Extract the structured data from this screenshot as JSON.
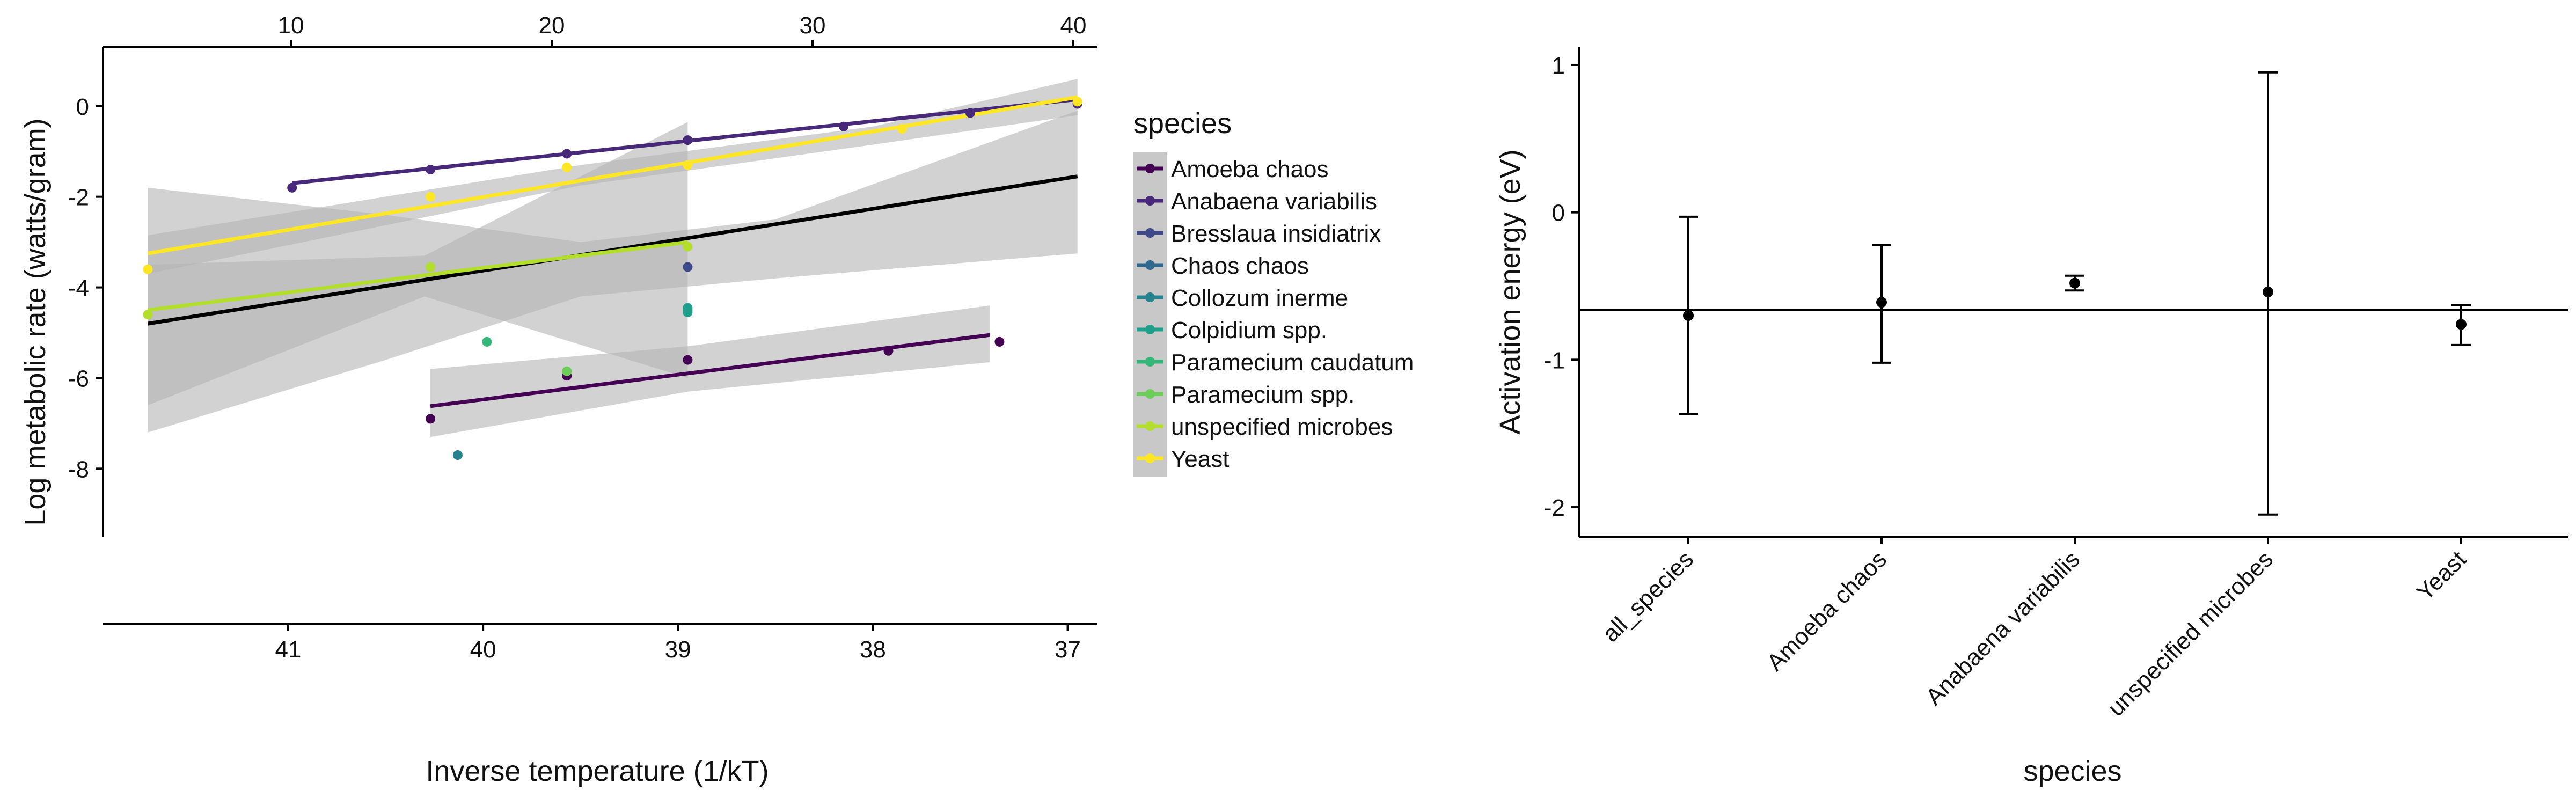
{
  "chart_data": [
    {
      "type": "scatter",
      "xlabel": "Inverse temperature (1/kT)",
      "ylabel": "Log metabolic rate (watts/gram)",
      "x_bottom_ticks": [
        "41",
        "40",
        "39",
        "38",
        "37"
      ],
      "x_top_ticks": [
        "10",
        "20",
        "30",
        "40"
      ],
      "y_ticks": [
        "0",
        "-2",
        "-4",
        "-6",
        "-8"
      ],
      "xlim": [
        41.95,
        36.85
      ],
      "ylim": [
        -9.5,
        1.3
      ],
      "x_reversed": true,
      "legend_title": "species",
      "legend_position": "right",
      "series": [
        {
          "name": "Amoeba chaos",
          "color": "#440154",
          "points": [
            [
              40.27,
              -6.9
            ],
            [
              39.57,
              -5.95
            ],
            [
              38.95,
              -5.6
            ],
            [
              37.92,
              -5.4
            ],
            [
              37.35,
              -5.2
            ]
          ],
          "fit": [
            [
              40.27,
              -6.62
            ],
            [
              37.4,
              -5.05
            ]
          ],
          "band": [
            [
              40.27,
              -5.8,
              -7.3
            ],
            [
              38.95,
              -5.3,
              -6.3
            ],
            [
              37.4,
              -4.4,
              -5.65
            ]
          ]
        },
        {
          "name": "Anabaena variabilis",
          "color": "#482878",
          "points": [
            [
              40.98,
              -1.8
            ],
            [
              40.27,
              -1.4
            ],
            [
              39.57,
              -1.05
            ],
            [
              38.95,
              -0.75
            ],
            [
              38.15,
              -0.45
            ],
            [
              37.5,
              -0.15
            ],
            [
              36.95,
              0.05
            ]
          ],
          "fit": [
            [
              40.98,
              -1.7
            ],
            [
              36.95,
              0.15
            ]
          ]
        },
        {
          "name": "Bresslaua insidiatrix",
          "color": "#3E4989",
          "points": [
            [
              38.95,
              -3.55
            ]
          ]
        },
        {
          "name": "Chaos chaos",
          "color": "#31688E",
          "points": []
        },
        {
          "name": "Collozum inerme",
          "color": "#26828E",
          "points": [
            [
              40.13,
              -7.7
            ]
          ]
        },
        {
          "name": "Colpidium spp.",
          "color": "#1F9E89",
          "points": [
            [
              38.95,
              -4.5
            ],
            [
              38.95,
              -4.45
            ],
            [
              38.95,
              -4.55
            ]
          ]
        },
        {
          "name": "Paramecium caudatum",
          "color": "#35B779",
          "points": [
            [
              39.98,
              -5.2
            ]
          ]
        },
        {
          "name": "Paramecium spp.",
          "color": "#6DCD59",
          "points": [
            [
              39.57,
              -5.85
            ],
            [
              40.27,
              -3.55
            ]
          ]
        },
        {
          "name": "unspecified microbes",
          "color": "#B4DE2C",
          "points": [
            [
              41.72,
              -4.6
            ],
            [
              40.27,
              -3.55
            ],
            [
              38.95,
              -3.1
            ]
          ],
          "fit": [
            [
              41.72,
              -4.5
            ],
            [
              38.95,
              -3.0
            ]
          ]
        },
        {
          "name": "Yeast",
          "color": "#FDE725",
          "points": [
            [
              41.72,
              -3.6
            ],
            [
              40.27,
              -2.0
            ],
            [
              39.57,
              -1.35
            ],
            [
              38.95,
              -1.3
            ],
            [
              37.85,
              -0.5
            ],
            [
              36.95,
              0.1
            ]
          ],
          "fit": [
            [
              41.72,
              -3.25
            ],
            [
              36.95,
              0.2
            ]
          ],
          "band": [
            [
              41.72,
              -2.85,
              -3.7
            ],
            [
              39.5,
              -1.3,
              -1.75
            ],
            [
              38.0,
              -0.45,
              -0.85
            ],
            [
              36.95,
              0.6,
              -0.2
            ]
          ]
        }
      ],
      "overall_fit": {
        "name": "all_species",
        "color": "#000000",
        "fit": [
          [
            41.72,
            -4.8
          ],
          [
            36.95,
            -1.55
          ]
        ]
      },
      "band_all": [
        [
          41.72,
          -1.8,
          -7.2
        ],
        [
          40.5,
          -2.4,
          -5.6
        ],
        [
          39.5,
          -3.0,
          -4.2
        ],
        [
          38.5,
          -2.5,
          -3.8
        ],
        [
          36.95,
          -0.1,
          -3.25
        ]
      ],
      "band_microbes": [
        [
          41.72,
          -3.5,
          -6.6
        ],
        [
          40.3,
          -3.3,
          -4.2
        ],
        [
          38.95,
          -0.35,
          -6.0
        ]
      ]
    },
    {
      "type": "errorbar",
      "xlabel": "species",
      "ylabel": "Activation energy (eV)",
      "y_ticks": [
        "1",
        "0",
        "-1",
        "-2"
      ],
      "ylim": [
        -2.2,
        1.12
      ],
      "categories": [
        "all_species",
        "Amoeba chaos",
        "Anabaena variabilis",
        "unspecified microbes",
        "Yeast"
      ],
      "values": [
        -0.7,
        -0.61,
        -0.48,
        -0.54,
        -0.76
      ],
      "lower": [
        -1.37,
        -1.02,
        -0.53,
        -2.05,
        -0.9
      ],
      "upper": [
        -0.03,
        -0.22,
        -0.43,
        0.95,
        -0.63
      ],
      "hline": -0.66
    }
  ]
}
